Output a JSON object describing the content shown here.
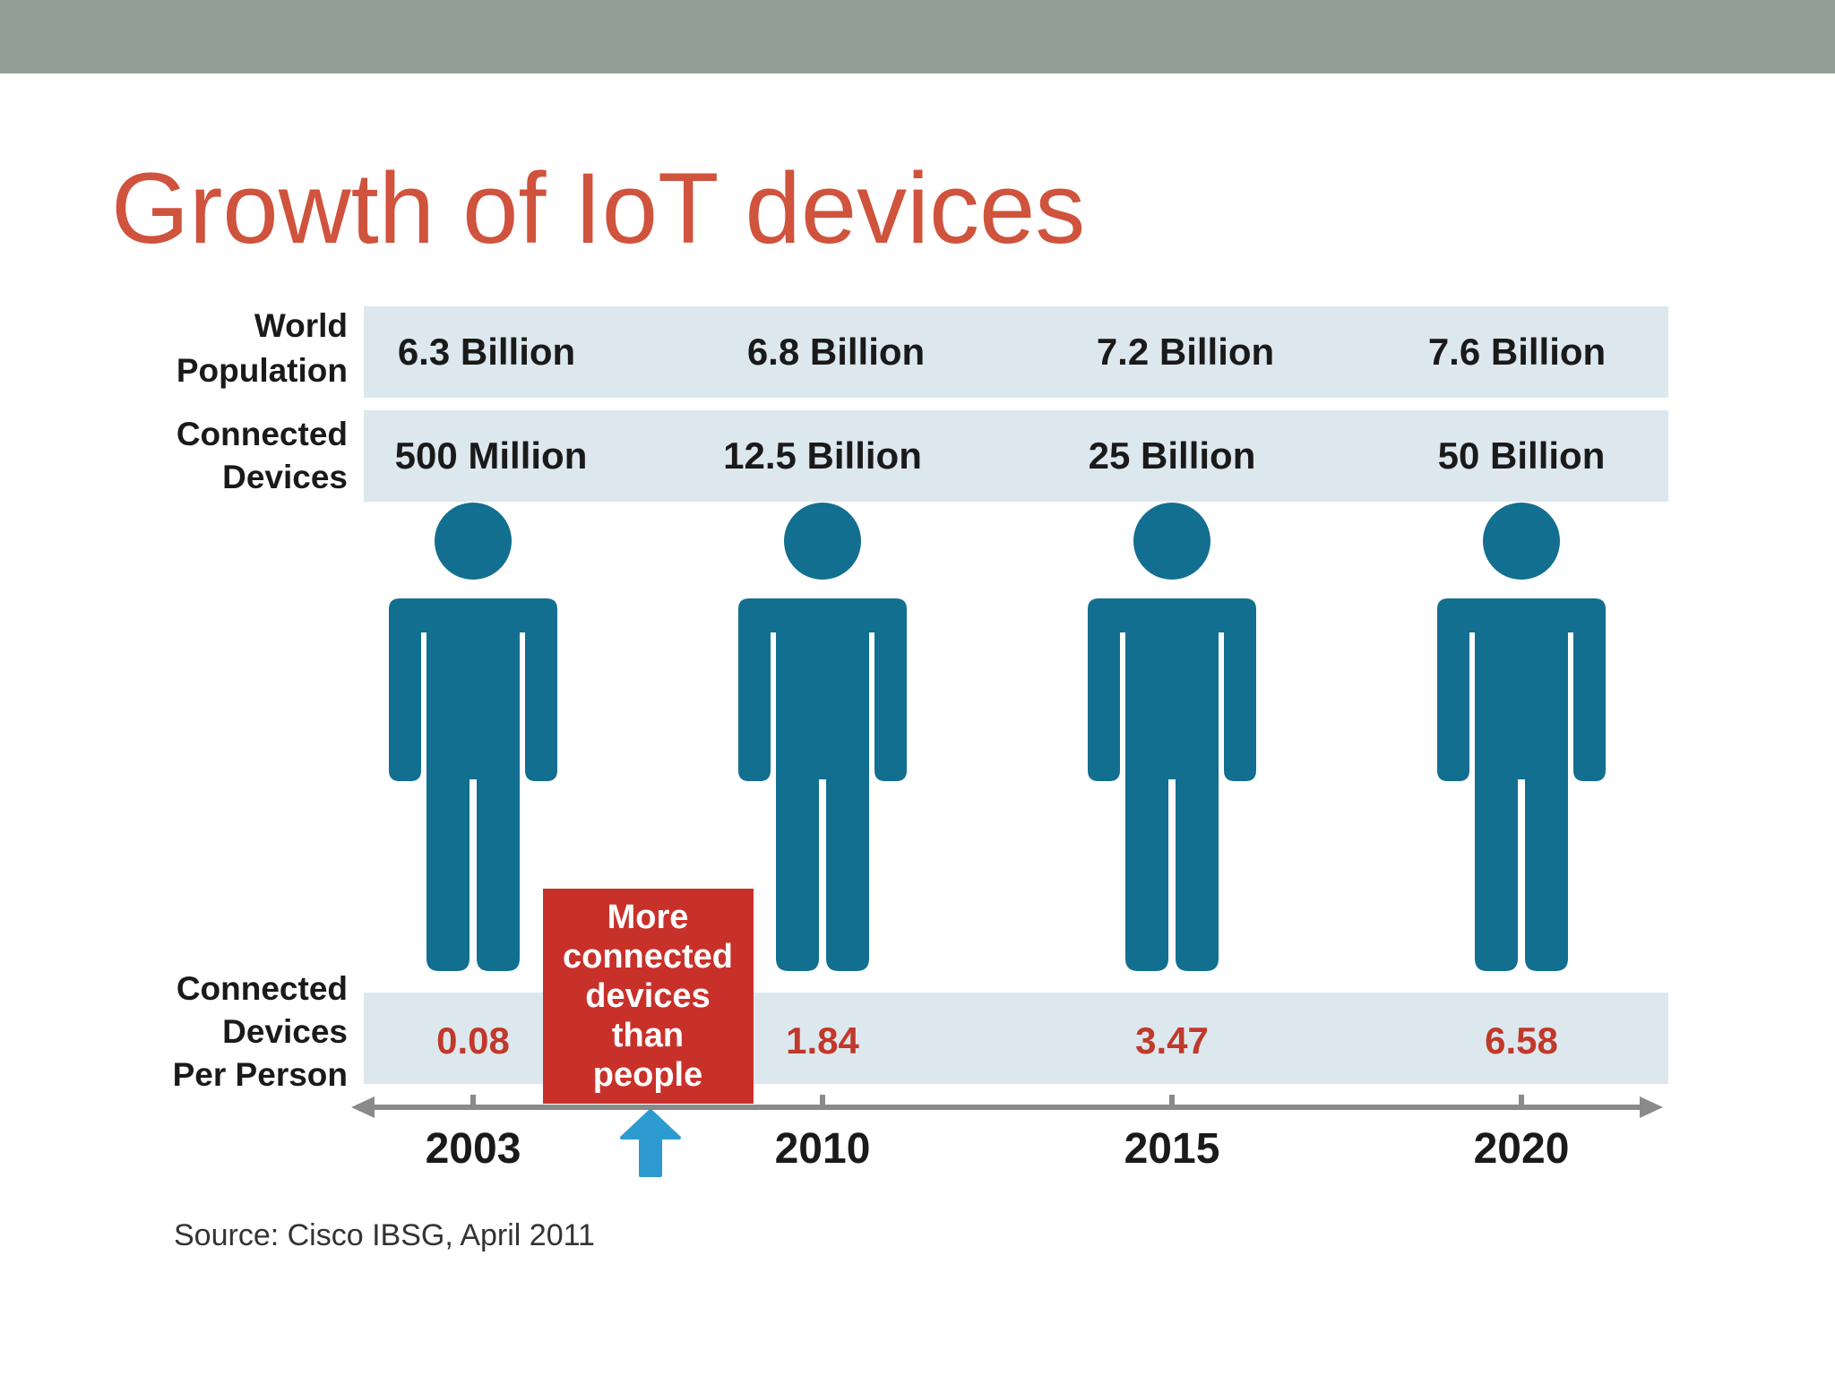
{
  "slide": {
    "title": "Growth of IoT devices",
    "source": "Source: Cisco IBSG, April 2011"
  },
  "colors": {
    "top_bar": "#919f98",
    "title": "#d0533d",
    "band": "#dde8ee",
    "person": "#136f90",
    "ratio_text": "#c0392b",
    "callout_bg": "#c8312a",
    "axis": "#8a8a8a",
    "arrow": "#2e9bd0"
  },
  "chart_data": {
    "type": "table",
    "row_labels": {
      "population": [
        "World",
        "Population"
      ],
      "devices": [
        "Connected",
        "Devices"
      ],
      "per_person": [
        "Connected",
        "Devices",
        "Per Person"
      ]
    },
    "categories": [
      "2003",
      "2010",
      "2015",
      "2020"
    ],
    "series": [
      {
        "name": "World Population",
        "values": [
          "6.3 Billion",
          "6.8 Billion",
          "7.2 Billion",
          "7.6 Billion"
        ]
      },
      {
        "name": "Connected Devices",
        "values": [
          "500 Million",
          "12.5 Billion",
          "25 Billion",
          "50 Billion"
        ]
      },
      {
        "name": "Connected Devices Per Person",
        "values": [
          0.08,
          1.84,
          3.47,
          6.58
        ]
      }
    ],
    "callout": {
      "lines": [
        "More",
        "connected",
        "devices",
        "than",
        "people"
      ],
      "position": "between 2003 and 2010"
    },
    "icon": "person-icon",
    "marker_icon": "arrow-up-icon"
  }
}
